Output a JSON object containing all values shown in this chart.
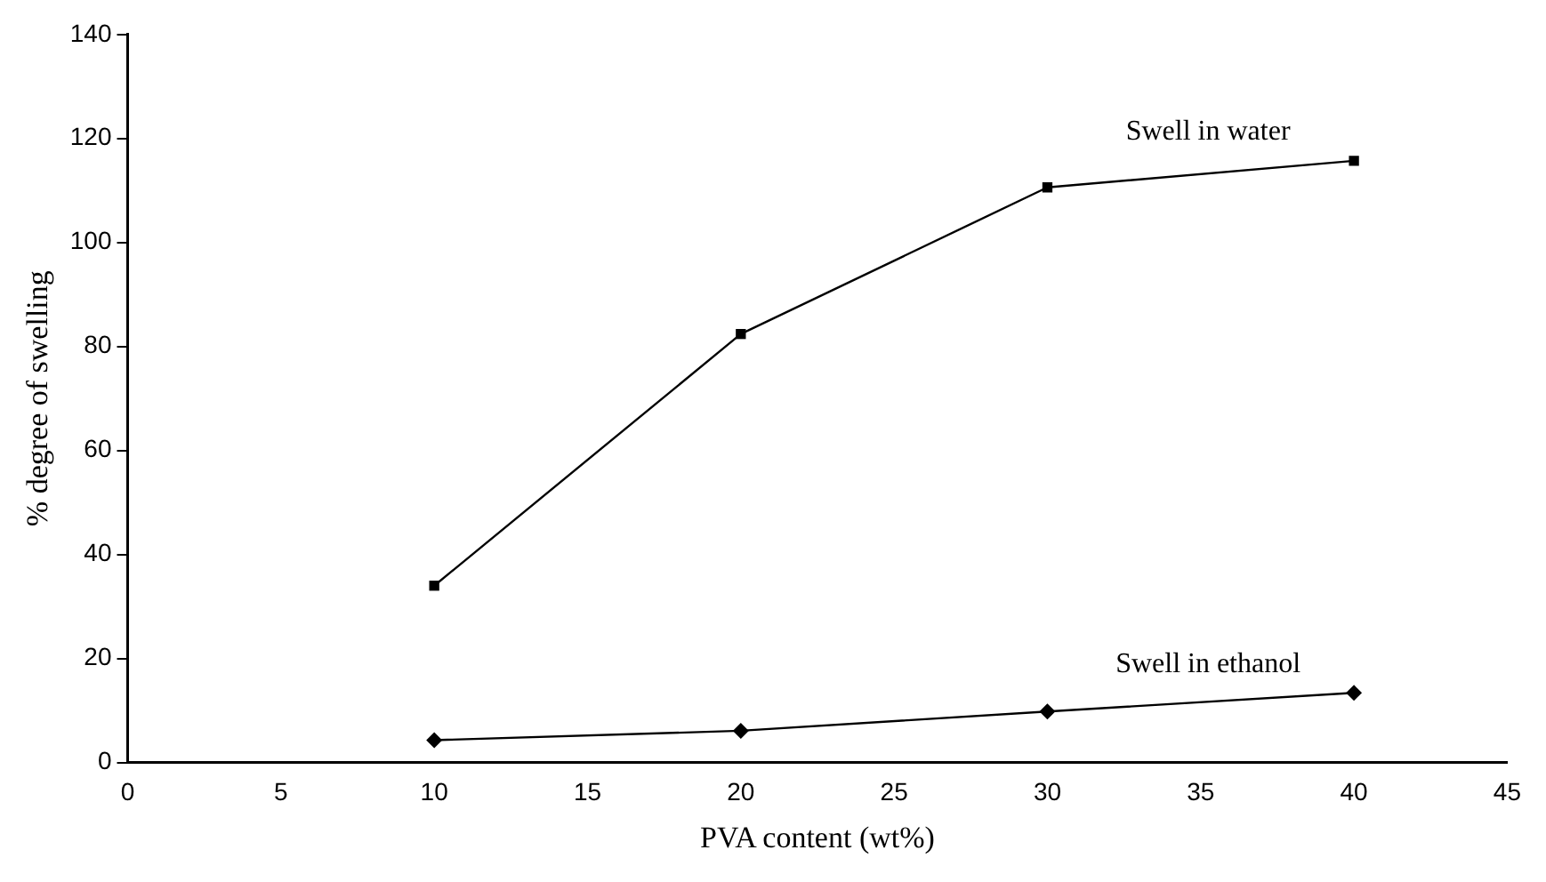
{
  "chart_data": {
    "type": "line",
    "xlabel": "PVA content (wt%)",
    "ylabel": "% degree of swelling",
    "x": [
      10,
      20,
      30,
      40
    ],
    "series": [
      {
        "name": "Swell in water",
        "color": "#000000",
        "marker": "square",
        "values": [
          34,
          82.4,
          110.6,
          115.7
        ]
      },
      {
        "name": "Swell in ethanol",
        "color": "#000000",
        "marker": "diamond",
        "values": [
          4.3,
          6.1,
          9.8,
          13.4
        ]
      }
    ],
    "xlim": [
      0,
      45
    ],
    "xticks": [
      0,
      5,
      10,
      15,
      20,
      25,
      30,
      35,
      40,
      45
    ],
    "ylim": [
      0,
      140
    ],
    "yticks": [
      0,
      20,
      40,
      60,
      80,
      100,
      120,
      140
    ],
    "grid": false,
    "legend": false,
    "line_style": "solid"
  }
}
